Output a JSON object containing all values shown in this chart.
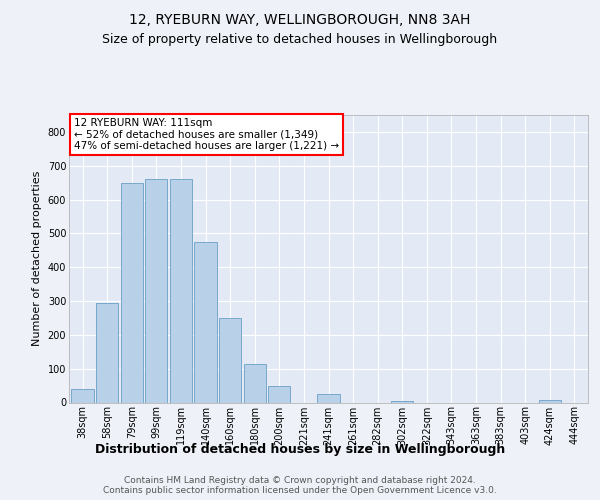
{
  "title1": "12, RYEBURN WAY, WELLINGBOROUGH, NN8 3AH",
  "title2": "Size of property relative to detached houses in Wellingborough",
  "xlabel": "Distribution of detached houses by size in Wellingborough",
  "ylabel": "Number of detached properties",
  "categories": [
    "38sqm",
    "58sqm",
    "79sqm",
    "99sqm",
    "119sqm",
    "140sqm",
    "160sqm",
    "180sqm",
    "200sqm",
    "221sqm",
    "241sqm",
    "261sqm",
    "282sqm",
    "302sqm",
    "322sqm",
    "343sqm",
    "363sqm",
    "383sqm",
    "403sqm",
    "424sqm",
    "444sqm"
  ],
  "values": [
    40,
    295,
    650,
    660,
    660,
    475,
    250,
    115,
    50,
    0,
    25,
    0,
    0,
    5,
    0,
    0,
    0,
    0,
    0,
    8,
    0
  ],
  "bar_color": "#b8d0e8",
  "bar_edge_color": "#6aa0c8",
  "annotation_box_text": "12 RYEBURN WAY: 111sqm\n← 52% of detached houses are smaller (1,349)\n47% of semi-detached houses are larger (1,221) →",
  "footer": "Contains HM Land Registry data © Crown copyright and database right 2024.\nContains public sector information licensed under the Open Government Licence v3.0.",
  "bg_color": "#eef2f8",
  "plot_bg_color": "#e4eaf5",
  "ylim": [
    0,
    850
  ],
  "yticks": [
    0,
    100,
    200,
    300,
    400,
    500,
    600,
    700,
    800
  ],
  "grid_color": "#ffffff",
  "title1_fontsize": 10,
  "title2_fontsize": 9,
  "xlabel_fontsize": 9,
  "ylabel_fontsize": 8,
  "tick_fontsize": 7,
  "annotation_fontsize": 7.5,
  "footer_fontsize": 6.5
}
